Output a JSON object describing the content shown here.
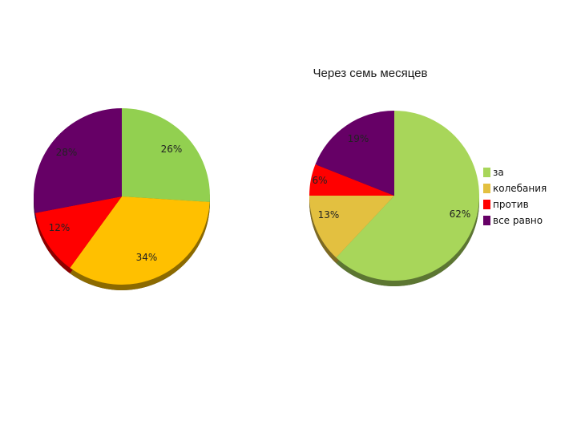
{
  "chart_data": [
    {
      "type": "pie",
      "title": "",
      "slices": [
        {
          "label": "за",
          "value": 26,
          "display": "26%",
          "color": "#92d050"
        },
        {
          "label": "колебания",
          "value": 34,
          "display": "34%",
          "color": "#ffc000"
        },
        {
          "label": "против",
          "value": 12,
          "display": "12%",
          "color": "#ff0000"
        },
        {
          "label": "все равно",
          "value": 28,
          "display": "28%",
          "color": "#660066"
        }
      ]
    },
    {
      "type": "pie",
      "title": "Через семь месяцев",
      "slices": [
        {
          "label": "за",
          "value": 62,
          "display": "62%",
          "color": "#a8d65a"
        },
        {
          "label": "колебания",
          "value": 13,
          "display": "13%",
          "color": "#e3c040"
        },
        {
          "label": "против",
          "value": 6,
          "display": "6%",
          "color": "#ff0000"
        },
        {
          "label": "все равно",
          "value": 19,
          "display": "19%",
          "color": "#660066"
        }
      ]
    }
  ],
  "legend": {
    "placement": "right",
    "items": [
      {
        "label": "за",
        "color": "#a8d65a"
      },
      {
        "label": "колебания",
        "color": "#e3c040"
      },
      {
        "label": "против",
        "color": "#ff0000"
      },
      {
        "label": "все равно",
        "color": "#660066"
      }
    ]
  }
}
